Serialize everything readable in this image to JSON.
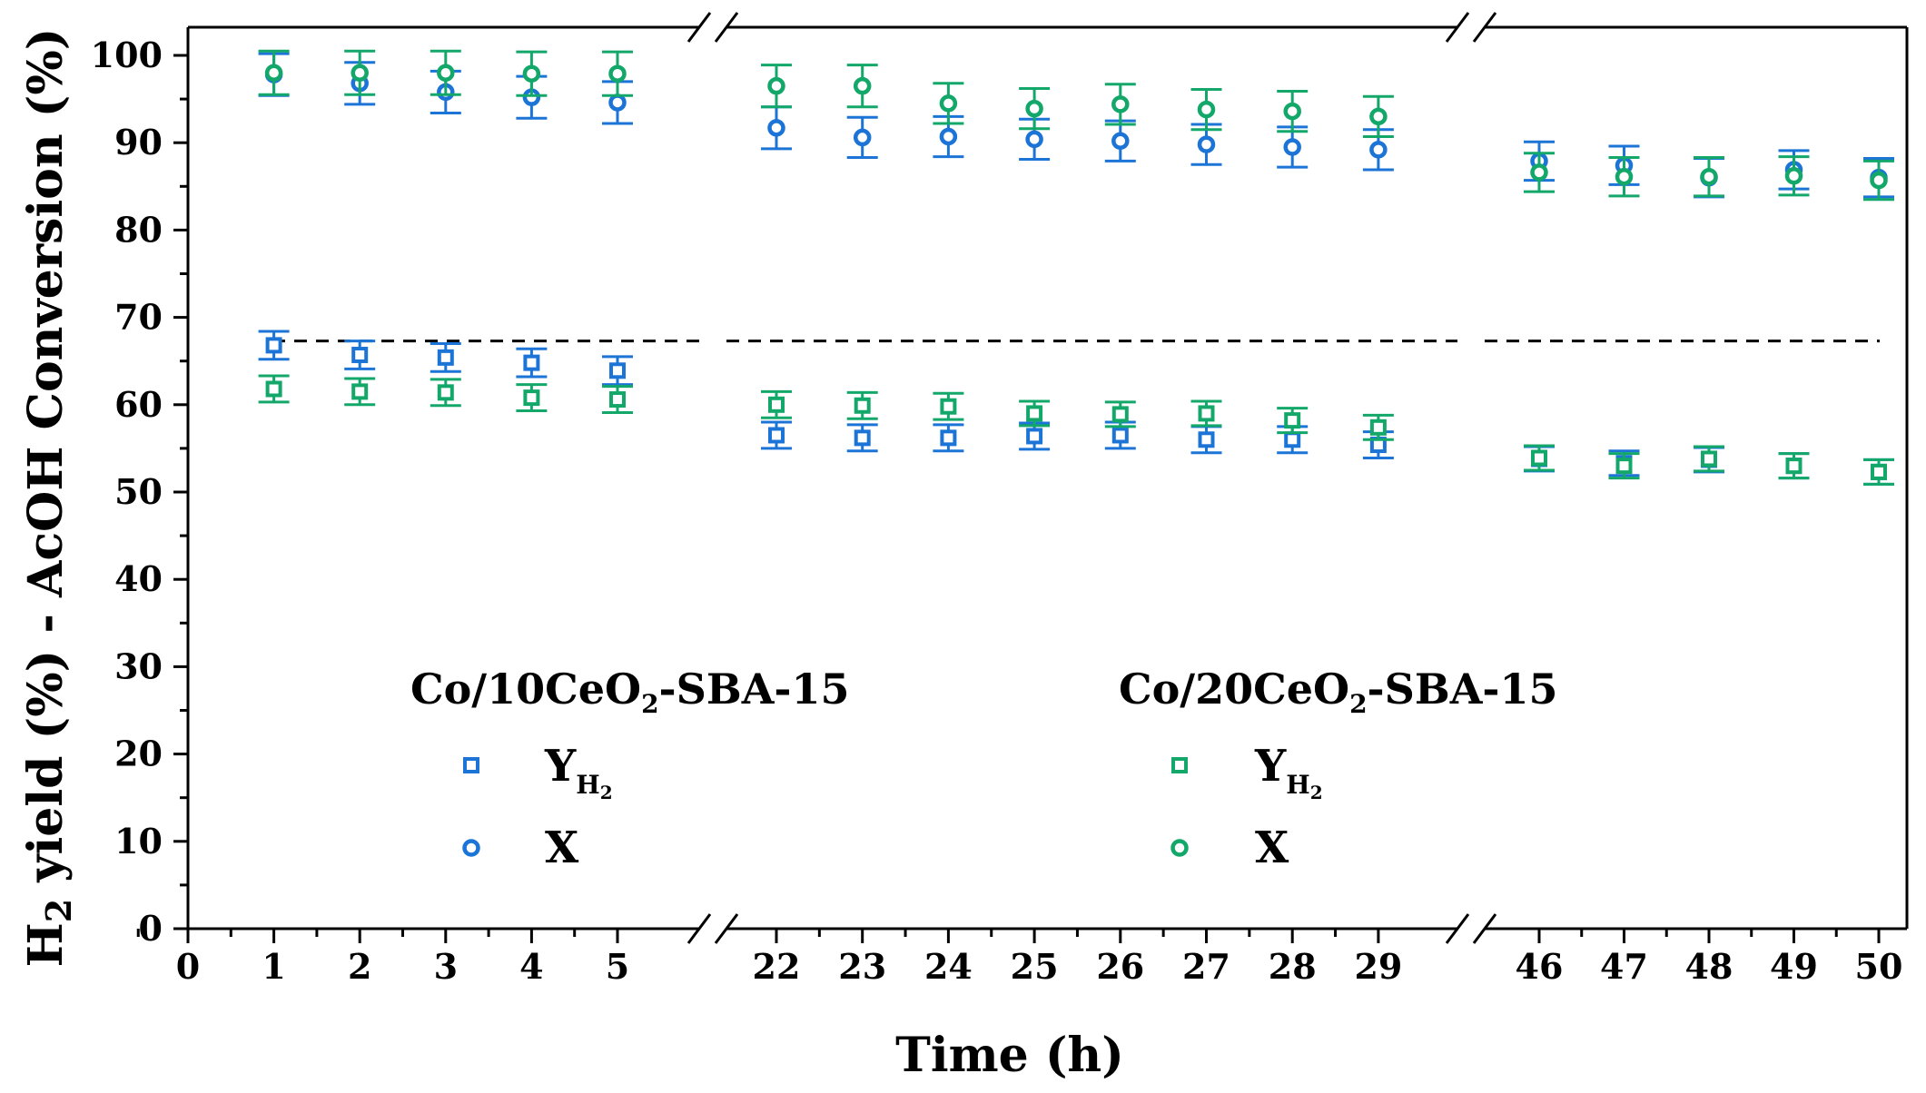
{
  "chart_data": {
    "type": "scatter",
    "xlabel": "Time (h)",
    "ylabel": "H2 yield (%) - AcOH Conversion (%)",
    "ylabel_parts": {
      "main": "H",
      "sub": "2",
      "rest": " yield (%) - AcOH Conversion (%)"
    },
    "ylim": [
      0,
      100
    ],
    "yticks": [
      0,
      10,
      20,
      30,
      40,
      50,
      60,
      70,
      80,
      90,
      100
    ],
    "xticks": [
      0,
      1,
      2,
      3,
      4,
      5,
      22,
      23,
      24,
      25,
      26,
      27,
      28,
      29,
      46,
      47,
      48,
      49,
      50
    ],
    "axis_breaks": [
      [
        5,
        22
      ],
      [
        29,
        46
      ]
    ],
    "reference_line": {
      "y": 67.3,
      "style": "dashed"
    },
    "series": [
      {
        "name": "Co/10CeO2-SBA-15 Y_H2",
        "group": "Co/10CeO2-SBA-15",
        "variable": "Y_H2",
        "marker": "square",
        "color": "#1B74D6",
        "x": [
          1,
          2,
          3,
          4,
          5,
          22,
          23,
          24,
          25,
          26,
          27,
          28,
          29,
          46,
          47,
          48,
          49,
          50
        ],
        "y": [
          66.8,
          65.7,
          65.4,
          64.8,
          63.9,
          56.5,
          56.2,
          56.2,
          56.4,
          56.5,
          56.0,
          56.0,
          55.4,
          53.8,
          53.3,
          53.7,
          53.0,
          52.3
        ],
        "err": [
          1.6,
          1.6,
          1.6,
          1.6,
          1.6,
          1.5,
          1.5,
          1.5,
          1.5,
          1.5,
          1.5,
          1.5,
          1.5,
          1.4,
          1.4,
          1.4,
          1.4,
          1.4
        ]
      },
      {
        "name": "Co/10CeO2-SBA-15 X",
        "group": "Co/10CeO2-SBA-15",
        "variable": "X",
        "marker": "circle",
        "color": "#1B74D6",
        "x": [
          1,
          2,
          3,
          4,
          5,
          22,
          23,
          24,
          25,
          26,
          27,
          28,
          29,
          46,
          47,
          48,
          49,
          50
        ],
        "y": [
          97.8,
          96.8,
          95.8,
          95.2,
          94.6,
          91.7,
          90.6,
          90.7,
          90.4,
          90.2,
          89.8,
          89.5,
          89.2,
          87.9,
          87.4,
          86.0,
          86.9,
          86.0
        ],
        "err": [
          2.4,
          2.4,
          2.4,
          2.4,
          2.4,
          2.4,
          2.3,
          2.3,
          2.3,
          2.3,
          2.3,
          2.3,
          2.3,
          2.2,
          2.2,
          2.2,
          2.2,
          2.2
        ]
      },
      {
        "name": "Co/20CeO2-SBA-15 Y_H2",
        "group": "Co/20CeO2-SBA-15",
        "variable": "Y_H2",
        "marker": "square",
        "color": "#13A86A",
        "x": [
          1,
          2,
          3,
          4,
          5,
          22,
          23,
          24,
          25,
          26,
          27,
          28,
          29,
          46,
          47,
          48,
          49,
          50
        ],
        "y": [
          61.8,
          61.5,
          61.4,
          60.8,
          60.6,
          60.0,
          59.9,
          59.8,
          59.0,
          58.9,
          59.0,
          58.2,
          57.4,
          53.9,
          53.0,
          53.8,
          53.0,
          52.3
        ],
        "err": [
          1.5,
          1.5,
          1.5,
          1.5,
          1.5,
          1.5,
          1.5,
          1.5,
          1.4,
          1.4,
          1.4,
          1.4,
          1.4,
          1.4,
          1.4,
          1.4,
          1.4,
          1.4
        ]
      },
      {
        "name": "Co/20CeO2-SBA-15 X",
        "group": "Co/20CeO2-SBA-15",
        "variable": "X",
        "marker": "circle",
        "color": "#13A86A",
        "x": [
          1,
          2,
          3,
          4,
          5,
          22,
          23,
          24,
          25,
          26,
          27,
          28,
          29,
          46,
          47,
          48,
          49,
          50
        ],
        "y": [
          98.0,
          98.0,
          98.0,
          97.9,
          97.9,
          96.5,
          96.5,
          94.5,
          93.9,
          94.4,
          93.8,
          93.6,
          93.0,
          86.6,
          86.1,
          86.1,
          86.2,
          85.7
        ],
        "err": [
          2.5,
          2.5,
          2.5,
          2.5,
          2.5,
          2.4,
          2.4,
          2.3,
          2.3,
          2.3,
          2.3,
          2.3,
          2.3,
          2.2,
          2.2,
          2.2,
          2.2,
          2.2
        ]
      }
    ],
    "legend": {
      "placement": "center",
      "groups": [
        {
          "title_parts": {
            "main": "Co/10CeO",
            "sub": "2",
            "rest": "-SBA-15"
          },
          "color": "#1B74D6",
          "entries": [
            {
              "marker": "square",
              "label_main": "Y",
              "label_sub": "H",
              "label_subsub": "2"
            },
            {
              "marker": "circle",
              "label_main": "X"
            }
          ]
        },
        {
          "title_parts": {
            "main": "Co/20CeO",
            "sub": "2",
            "rest": "-SBA-15"
          },
          "color": "#13A86A",
          "entries": [
            {
              "marker": "square",
              "label_main": "Y",
              "label_sub": "H",
              "label_subsub": "2"
            },
            {
              "marker": "circle",
              "label_main": "X"
            }
          ]
        }
      ]
    }
  }
}
